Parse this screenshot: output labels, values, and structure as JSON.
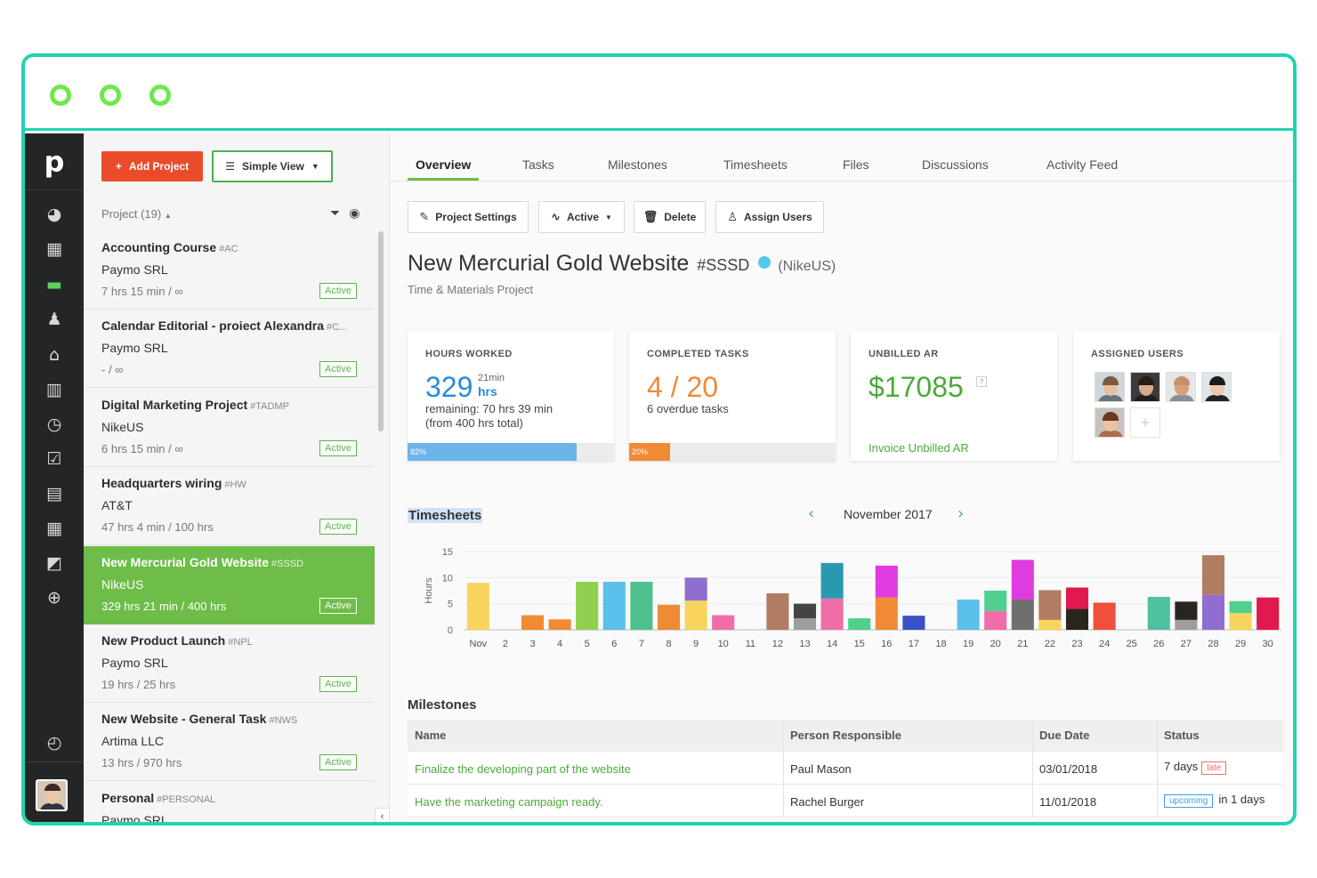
{
  "app": {
    "logo": "p",
    "accent_color": "#22d3b0",
    "green": "#6dbd48",
    "orange": "#ea4c2a"
  },
  "sidebar_icons": [
    "dashboard-icon",
    "buildings-icon",
    "folder-icon",
    "user-icon",
    "bank-icon",
    "bar-chart-icon",
    "clock-icon",
    "checkbox-icon",
    "report-icon",
    "calendar-icon",
    "export-icon",
    "add-circle-icon",
    "timer-icon"
  ],
  "toolbar": {
    "add_project": "Add Project",
    "simple_view": "Simple View"
  },
  "project_list": {
    "header": "Project (19)",
    "items": [
      {
        "name": "Accounting Course",
        "code": "#AC",
        "client": "Paymo SRL",
        "hours": "7 hrs 15 min / ∞",
        "status": "Active"
      },
      {
        "name": "Calendar Editorial - proiect Alexandra",
        "code": "#C...",
        "client": "Paymo SRL",
        "hours": "- / ∞",
        "status": "Active"
      },
      {
        "name": "Digital Marketing Project",
        "code": "#TADMP",
        "client": "NikeUS",
        "hours": "6 hrs 15 min / ∞",
        "status": "Active"
      },
      {
        "name": "Headquarters wiring",
        "code": "#HW",
        "client": "AT&T",
        "hours": "47 hrs 4 min / 100 hrs",
        "status": "Active"
      },
      {
        "name": "New Mercurial Gold Website",
        "code": "#SSSD",
        "client": "NikeUS",
        "hours": "329 hrs 21 min / 400 hrs",
        "status": "Active"
      },
      {
        "name": "New Product Launch",
        "code": "#NPL",
        "client": "Paymo SRL",
        "hours": "19 hrs / 25 hrs",
        "status": "Active"
      },
      {
        "name": "New Website - General Task",
        "code": "#NWS",
        "client": "Artima LLC",
        "hours": "13 hrs / 970 hrs",
        "status": "Active"
      },
      {
        "name": "Personal",
        "code": "#PERSONAL",
        "client": "Paymo SRL",
        "hours": "",
        "status": ""
      }
    ]
  },
  "tabs": [
    "Overview",
    "Tasks",
    "Milestones",
    "Timesheets",
    "Files",
    "Discussions",
    "Activity Feed"
  ],
  "actions": {
    "settings": "Project Settings",
    "active": "Active",
    "delete": "Delete",
    "assign": "Assign Users"
  },
  "project": {
    "title": "New Mercurial Gold Website",
    "code": "#SSSD",
    "client": "(NikeUS)",
    "type": "Time & Materials Project"
  },
  "cards": {
    "hours": {
      "title": "HOURS WORKED",
      "value": "329",
      "sup": "21min",
      "unit": "hrs",
      "remaining": "remaining: 70 hrs 39 min",
      "total": "(from 400 hrs total)",
      "percent_label": "82%",
      "percent": 82
    },
    "tasks": {
      "title": "COMPLETED TASKS",
      "value": "4 / 20",
      "overdue": "6 overdue tasks",
      "percent_label": "20%",
      "percent": 20
    },
    "ar": {
      "title": "UNBILLED AR",
      "value": "$17085",
      "help": "?",
      "link": "Invoice Unbilled AR"
    },
    "users": {
      "title": "ASSIGNED USERS",
      "add": "+"
    }
  },
  "timesheets": {
    "title": "Timesheets",
    "month": "November 2017",
    "prev": "‹",
    "next": "›"
  },
  "chart_data": {
    "type": "bar",
    "stacked": true,
    "ylabel": "Hours",
    "ylim": [
      0,
      15
    ],
    "yticks": [
      0,
      5,
      10,
      15
    ],
    "categories": [
      "Nov",
      "2",
      "3",
      "4",
      "5",
      "6",
      "7",
      "8",
      "9",
      "10",
      "11",
      "12",
      "13",
      "14",
      "15",
      "16",
      "17",
      "18",
      "19",
      "20",
      "21",
      "22",
      "23",
      "24",
      "25",
      "26",
      "27",
      "28",
      "29",
      "30"
    ],
    "stacks": [
      [
        {
          "v": 9,
          "c": "#f9d45c"
        }
      ],
      [],
      [
        {
          "v": 2.8,
          "c": "#f08a35"
        }
      ],
      [
        {
          "v": 2,
          "c": "#f08a35"
        }
      ],
      [
        {
          "v": 9.2,
          "c": "#8fd14f"
        }
      ],
      [
        {
          "v": 9.2,
          "c": "#5bc0eb"
        }
      ],
      [
        {
          "v": 9.2,
          "c": "#4fc08d"
        }
      ],
      [
        {
          "v": 4.8,
          "c": "#f08a35"
        }
      ],
      [
        {
          "v": 5.6,
          "c": "#f9d45c"
        },
        {
          "v": 4.4,
          "c": "#8f6ecf"
        }
      ],
      [
        {
          "v": 2.8,
          "c": "#f06ea8"
        }
      ],
      [],
      [
        {
          "v": 7,
          "c": "#b07d62"
        }
      ],
      [
        {
          "v": 2.2,
          "c": "#9e9e9e"
        },
        {
          "v": 2.8,
          "c": "#444444"
        }
      ],
      [
        {
          "v": 6,
          "c": "#f06ea8"
        },
        {
          "v": 6.8,
          "c": "#2a98b0"
        }
      ],
      [
        {
          "v": 2.2,
          "c": "#4fd08e"
        }
      ],
      [
        {
          "v": 6.2,
          "c": "#f08a35"
        },
        {
          "v": 6.1,
          "c": "#e03be0"
        }
      ],
      [
        {
          "v": 2.7,
          "c": "#3b4fc7"
        }
      ],
      [],
      [
        {
          "v": 5.8,
          "c": "#5bc0eb"
        }
      ],
      [
        {
          "v": 3.6,
          "c": "#f06ea8"
        },
        {
          "v": 3.9,
          "c": "#4fd08e"
        }
      ],
      [
        {
          "v": 5.8,
          "c": "#6f6f6f"
        },
        {
          "v": 7.6,
          "c": "#e03be0"
        }
      ],
      [
        {
          "v": 1.9,
          "c": "#f9d45c"
        },
        {
          "v": 5.7,
          "c": "#b07d62"
        }
      ],
      [
        {
          "v": 4,
          "c": "#2b2520"
        },
        {
          "v": 4.1,
          "c": "#e0194f"
        }
      ],
      [
        {
          "v": 5.2,
          "c": "#f04e3e"
        }
      ],
      [],
      [
        {
          "v": 6.3,
          "c": "#4fc0a0"
        }
      ],
      [
        {
          "v": 1.9,
          "c": "#9e9e9e"
        },
        {
          "v": 3.5,
          "c": "#2b2520"
        }
      ],
      [
        {
          "v": 6.7,
          "c": "#8f6ecf"
        },
        {
          "v": 7.6,
          "c": "#b07d62"
        }
      ],
      [
        {
          "v": 3.2,
          "c": "#f9d45c"
        },
        {
          "v": 2.3,
          "c": "#4fd08e"
        }
      ],
      [
        {
          "v": 6.2,
          "c": "#e0194f"
        }
      ]
    ]
  },
  "milestones": {
    "title": "Milestones",
    "headers": [
      "Name",
      "Person Responsible",
      "Due Date",
      "Status"
    ],
    "rows": [
      {
        "name": "Finalize the developing part of the website",
        "person": "Paul Mason",
        "due": "03/01/2018",
        "status_text": "7 days",
        "tag": "late"
      },
      {
        "name": "Have the marketing campaign ready.",
        "person": "Rachel Burger",
        "due": "11/01/2018",
        "status_text": "in 1 days",
        "tag": "upcoming"
      }
    ]
  }
}
